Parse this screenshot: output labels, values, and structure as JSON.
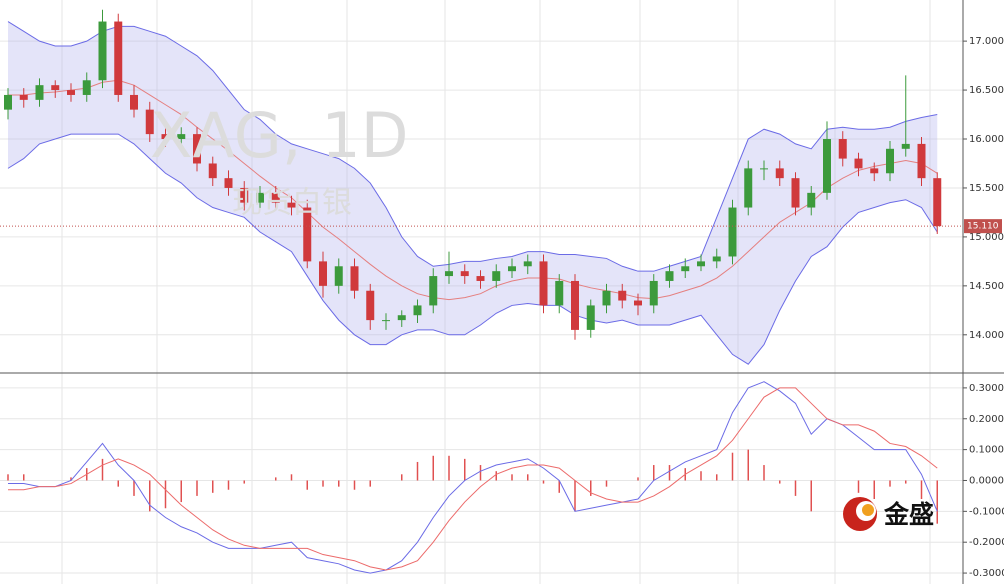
{
  "watermark": {
    "symbol": "XAG, 1D",
    "name": "现货白银"
  },
  "logo": "金盛",
  "chart_data": [
    {
      "type": "candlestick",
      "ylim": [
        13.62,
        17.42
      ],
      "yticks": [
        {
          "value": 14,
          "label": "14.000"
        },
        {
          "value": 14.5,
          "label": "14.500"
        },
        {
          "value": 15,
          "label": "15.000"
        },
        {
          "value": 15.5,
          "label": "15.500"
        },
        {
          "value": 16,
          "label": "16.000"
        },
        {
          "value": 16.5,
          "label": "16.500"
        },
        {
          "value": 17,
          "label": "17.000"
        }
      ],
      "last_label": "15.110",
      "up_color": "#3c9a3c",
      "down_color": "#d0393c",
      "open": [
        16.3,
        16.45,
        16.4,
        16.55,
        16.5,
        16.45,
        16.6,
        17.2,
        16.45,
        16.3,
        16.05,
        16.0,
        16.05,
        15.75,
        15.6,
        15.5,
        15.35,
        15.45,
        15.35,
        15.3,
        14.75,
        14.5,
        14.7,
        14.45,
        14.15,
        14.15,
        14.2,
        14.3,
        14.6,
        14.65,
        14.6,
        14.55,
        14.65,
        14.7,
        14.75,
        14.3,
        14.55,
        14.05,
        14.3,
        14.45,
        14.35,
        14.3,
        14.55,
        14.65,
        14.7,
        14.75,
        14.8,
        15.3,
        15.7,
        15.7,
        15.6,
        15.3,
        15.45,
        16.0,
        15.8,
        15.7,
        15.65,
        15.9,
        15.95,
        15.6
      ],
      "high": [
        16.52,
        16.52,
        16.62,
        16.6,
        16.57,
        16.68,
        17.32,
        17.28,
        16.55,
        16.38,
        16.12,
        16.12,
        16.12,
        15.82,
        15.68,
        15.57,
        15.52,
        15.52,
        15.42,
        15.38,
        14.85,
        14.78,
        14.78,
        14.52,
        14.22,
        14.25,
        14.36,
        14.68,
        14.85,
        14.72,
        14.66,
        14.72,
        14.78,
        14.82,
        14.82,
        14.62,
        14.62,
        14.36,
        14.52,
        14.52,
        14.42,
        14.62,
        14.72,
        14.78,
        14.82,
        14.88,
        15.38,
        15.78,
        15.78,
        15.78,
        15.66,
        15.52,
        16.18,
        16.08,
        15.86,
        15.76,
        15.98,
        16.65,
        16.02,
        15.66
      ],
      "low": [
        16.2,
        16.32,
        16.33,
        16.42,
        16.38,
        16.38,
        16.52,
        16.38,
        16.22,
        15.97,
        15.92,
        15.92,
        15.67,
        15.52,
        15.42,
        15.27,
        15.28,
        15.27,
        15.22,
        14.68,
        14.38,
        14.42,
        14.37,
        14.05,
        14.05,
        14.08,
        14.12,
        14.22,
        14.52,
        14.52,
        14.47,
        14.48,
        14.58,
        14.62,
        14.22,
        14.22,
        13.95,
        13.97,
        14.22,
        14.27,
        14.2,
        14.22,
        14.48,
        14.58,
        14.65,
        14.68,
        14.72,
        15.22,
        15.58,
        15.52,
        15.22,
        15.22,
        15.38,
        15.72,
        15.62,
        15.57,
        15.57,
        15.82,
        15.52,
        15.03
      ],
      "close": [
        16.45,
        16.4,
        16.55,
        16.5,
        16.45,
        16.6,
        17.2,
        16.45,
        16.3,
        16.05,
        16.0,
        16.05,
        15.75,
        15.6,
        15.5,
        15.35,
        15.45,
        15.35,
        15.3,
        14.75,
        14.5,
        14.7,
        14.45,
        14.15,
        14.15,
        14.2,
        14.3,
        14.6,
        14.65,
        14.6,
        14.55,
        14.65,
        14.7,
        14.75,
        14.3,
        14.55,
        14.05,
        14.3,
        14.45,
        14.35,
        14.3,
        14.55,
        14.65,
        14.7,
        14.75,
        14.8,
        15.3,
        15.7,
        15.7,
        15.6,
        15.3,
        15.45,
        16.0,
        15.8,
        15.7,
        15.65,
        15.9,
        15.95,
        15.6,
        15.11
      ],
      "bands": {
        "color": "#6b6be6",
        "fill": "rgba(170,170,235,0.32)",
        "mid_color": "#e57f7f",
        "upper": [
          17.2,
          17.1,
          17.0,
          16.95,
          16.95,
          17.0,
          17.1,
          17.15,
          17.15,
          17.1,
          17.05,
          16.95,
          16.85,
          16.7,
          16.5,
          16.3,
          16.2,
          16.05,
          15.95,
          15.9,
          15.85,
          15.8,
          15.7,
          15.55,
          15.3,
          15.0,
          14.8,
          14.7,
          14.72,
          14.75,
          14.75,
          14.78,
          14.8,
          14.85,
          14.85,
          14.82,
          14.82,
          14.8,
          14.78,
          14.7,
          14.65,
          14.65,
          14.7,
          14.75,
          14.8,
          15.2,
          15.6,
          16.0,
          16.1,
          16.05,
          15.95,
          15.9,
          16.1,
          16.12,
          16.1,
          16.1,
          16.12,
          16.18,
          16.22,
          16.25
        ],
        "middle": [
          16.45,
          16.45,
          16.47,
          16.48,
          16.5,
          16.52,
          16.58,
          16.6,
          16.55,
          16.45,
          16.35,
          16.25,
          16.12,
          16.0,
          15.88,
          15.75,
          15.62,
          15.5,
          15.4,
          15.25,
          15.1,
          14.98,
          14.85,
          14.72,
          14.6,
          14.5,
          14.42,
          14.38,
          14.36,
          14.38,
          14.42,
          14.5,
          14.55,
          14.58,
          14.58,
          14.57,
          14.52,
          14.48,
          14.45,
          14.42,
          14.38,
          14.37,
          14.4,
          14.45,
          14.5,
          14.58,
          14.7,
          14.85,
          15.0,
          15.15,
          15.25,
          15.35,
          15.5,
          15.6,
          15.68,
          15.72,
          15.75,
          15.78,
          15.75,
          15.65
        ],
        "lower": [
          15.7,
          15.8,
          15.95,
          16.0,
          16.05,
          16.05,
          16.05,
          16.05,
          15.95,
          15.8,
          15.65,
          15.55,
          15.4,
          15.3,
          15.25,
          15.2,
          15.05,
          14.95,
          14.85,
          14.6,
          14.35,
          14.15,
          14.0,
          13.9,
          13.9,
          14.0,
          14.05,
          14.05,
          14.0,
          14.0,
          14.1,
          14.22,
          14.3,
          14.32,
          14.3,
          14.3,
          14.2,
          14.15,
          14.12,
          14.15,
          14.1,
          14.1,
          14.1,
          14.15,
          14.2,
          14.0,
          13.8,
          13.7,
          13.9,
          14.25,
          14.55,
          14.8,
          14.9,
          15.1,
          15.25,
          15.3,
          15.35,
          15.38,
          15.3,
          15.05
        ]
      }
    },
    {
      "type": "macd",
      "ylim": [
        -0.316,
        0.345
      ],
      "yticks": [
        {
          "value": -0.3,
          "label": "-0.3000"
        },
        {
          "value": -0.2,
          "label": "-0.2000"
        },
        {
          "value": -0.1,
          "label": "-0.1000"
        },
        {
          "value": 0,
          "label": "0.0000"
        },
        {
          "value": 0.1,
          "label": "0.1000"
        },
        {
          "value": 0.2,
          "label": "0.2000"
        },
        {
          "value": 0.3,
          "label": "0.3000"
        }
      ],
      "hist_color": "#e05050",
      "histogram": [
        0.02,
        0.02,
        0,
        0,
        0.01,
        0.04,
        0.07,
        -0.02,
        -0.05,
        -0.1,
        -0.09,
        -0.07,
        -0.05,
        -0.04,
        -0.03,
        -0.01,
        0,
        0.01,
        0.02,
        -0.03,
        -0.02,
        -0.02,
        -0.03,
        -0.02,
        0,
        0.02,
        0.06,
        0.08,
        0.08,
        0.07,
        0.05,
        0.03,
        0.02,
        0.02,
        -0.01,
        -0.04,
        -0.1,
        -0.05,
        -0.02,
        0,
        0.01,
        0.05,
        0.05,
        0.04,
        0.03,
        0.02,
        0.09,
        0.1,
        0.05,
        -0.01,
        -0.05,
        -0.1,
        0,
        0,
        -0.04,
        -0.06,
        -0.02,
        -0.01,
        -0.06,
        -0.14
      ],
      "series": [
        {
          "color": "#6b6be6",
          "values": [
            -0.01,
            -0.01,
            -0.02,
            -0.02,
            0.0,
            0.06,
            0.12,
            0.05,
            0.0,
            -0.08,
            -0.12,
            -0.15,
            -0.17,
            -0.2,
            -0.22,
            -0.22,
            -0.22,
            -0.21,
            -0.2,
            -0.25,
            -0.26,
            -0.27,
            -0.29,
            -0.3,
            -0.29,
            -0.26,
            -0.2,
            -0.12,
            -0.05,
            0.0,
            0.03,
            0.05,
            0.06,
            0.07,
            0.04,
            0.0,
            -0.1,
            -0.09,
            -0.08,
            -0.07,
            -0.06,
            0.0,
            0.03,
            0.06,
            0.08,
            0.1,
            0.22,
            0.3,
            0.32,
            0.29,
            0.25,
            0.15,
            0.2,
            0.18,
            0.14,
            0.1,
            0.1,
            0.1,
            0.02,
            -0.1
          ]
        },
        {
          "color": "#ec6b6b",
          "values": [
            -0.03,
            -0.03,
            -0.02,
            -0.02,
            -0.01,
            0.02,
            0.05,
            0.07,
            0.05,
            0.02,
            -0.03,
            -0.08,
            -0.12,
            -0.16,
            -0.19,
            -0.21,
            -0.22,
            -0.22,
            -0.22,
            -0.22,
            -0.24,
            -0.25,
            -0.26,
            -0.28,
            -0.29,
            -0.28,
            -0.26,
            -0.2,
            -0.13,
            -0.07,
            -0.02,
            0.02,
            0.04,
            0.05,
            0.05,
            0.04,
            0.0,
            -0.04,
            -0.06,
            -0.07,
            -0.07,
            -0.05,
            -0.02,
            0.02,
            0.05,
            0.08,
            0.13,
            0.2,
            0.27,
            0.3,
            0.3,
            0.25,
            0.2,
            0.18,
            0.18,
            0.16,
            0.12,
            0.11,
            0.08,
            0.04
          ]
        }
      ]
    }
  ]
}
